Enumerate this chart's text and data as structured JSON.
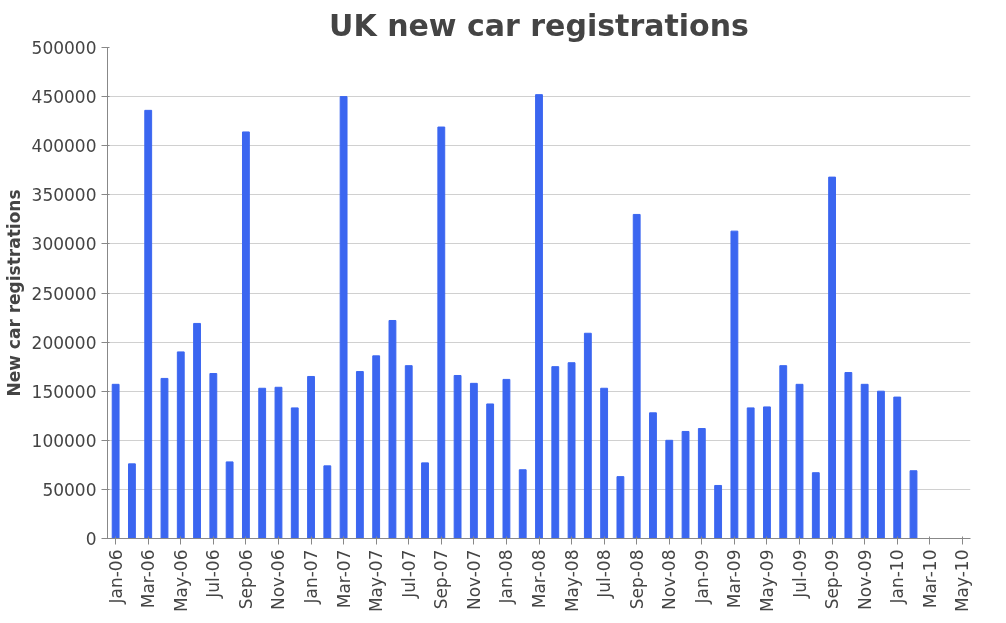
{
  "chart_data": {
    "type": "bar",
    "title": "UK new car registrations",
    "ylabel": "New car registrations",
    "categories": [
      "Jan-06",
      null,
      "Mar-06",
      null,
      "May-06",
      null,
      "Jul-06",
      null,
      "Sep-06",
      null,
      "Nov-06",
      null,
      "Jan-07",
      null,
      "Mar-07",
      null,
      "May-07",
      null,
      "Jul-07",
      null,
      "Sep-07",
      null,
      "Nov-07",
      null,
      "Jan-08",
      null,
      "Mar-08",
      null,
      "May-08",
      null,
      "Jul-08",
      null,
      "Sep-08",
      null,
      "Nov-08",
      null,
      "Jan-09",
      null,
      "Mar-09",
      null,
      "May-09",
      null,
      "Jul-09",
      null,
      "Sep-09",
      null,
      "Nov-09",
      null,
      "Jan-10",
      null,
      "Mar-10",
      null,
      "May-10"
    ],
    "values": [
      157000,
      76000,
      436000,
      163000,
      190000,
      219000,
      168000,
      78000,
      414000,
      153000,
      154000,
      133000,
      165000,
      74000,
      450000,
      170000,
      186000,
      222000,
      176000,
      77000,
      419000,
      166000,
      158000,
      137000,
      162000,
      70000,
      452000,
      175000,
      179000,
      209000,
      153000,
      63000,
      330000,
      128000,
      100000,
      109000,
      112000,
      54000,
      313000,
      133000,
      134000,
      176000,
      157000,
      67000,
      368000,
      169000,
      157000,
      150000,
      144000,
      69000,
      null,
      null,
      null
    ],
    "color": "#3b66f0",
    "ylim": [
      0,
      500000
    ],
    "yticks": [
      0,
      50000,
      100000,
      150000,
      200000,
      250000,
      300000,
      350000,
      400000,
      450000,
      500000
    ],
    "grid": "y"
  }
}
